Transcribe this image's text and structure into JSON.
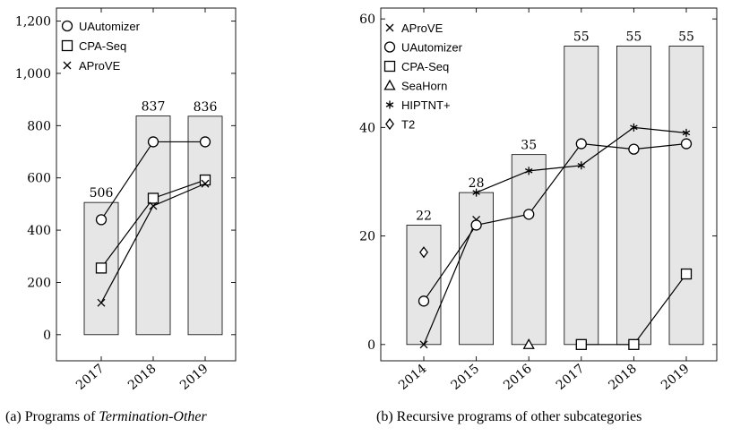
{
  "chart_data": [
    {
      "type": "bar",
      "categories": [
        "2017",
        "2018",
        "2019"
      ],
      "ylim": [
        -100,
        1250
      ],
      "yticks": [
        0,
        200,
        400,
        600,
        800,
        1000,
        1200
      ],
      "ytick_labels": [
        "0",
        "200",
        "400",
        "600",
        "800",
        "1,000",
        "1,200"
      ],
      "bars": {
        "values": [
          506,
          837,
          836
        ],
        "labels": [
          "506",
          "837",
          "836"
        ],
        "color": "#e6e6e6"
      },
      "series": [
        {
          "name": "UAutomizer",
          "marker": "circle",
          "values": [
            440,
            738,
            738
          ]
        },
        {
          "name": "CPA-Seq",
          "marker": "square",
          "values": [
            255,
            522,
            592
          ]
        },
        {
          "name": "AProVE",
          "marker": "cross",
          "values": [
            122,
            493,
            578
          ]
        }
      ],
      "legend_position": "top-left",
      "caption_prefix": "(a) Programs of ",
      "caption_emph": "Termination-Other"
    },
    {
      "type": "bar",
      "categories": [
        "2014",
        "2015",
        "2016",
        "2017",
        "2018",
        "2019"
      ],
      "ylim": [
        -3,
        62
      ],
      "yticks": [
        0,
        20,
        40,
        60
      ],
      "ytick_labels": [
        "0",
        "20",
        "40",
        "60"
      ],
      "bars": {
        "values": [
          22,
          28,
          35,
          55,
          55,
          55
        ],
        "labels": [
          "22",
          "28",
          "35",
          "55",
          "55",
          "55"
        ],
        "color": "#e6e6e6"
      },
      "series": [
        {
          "name": "AProVE",
          "marker": "cross",
          "values": [
            0,
            23,
            null,
            null,
            null,
            null
          ]
        },
        {
          "name": "UAutomizer",
          "marker": "circle",
          "values": [
            8,
            22,
            24,
            37,
            36,
            37
          ]
        },
        {
          "name": "CPA-Seq",
          "marker": "square",
          "values": [
            null,
            null,
            null,
            0,
            0,
            13
          ]
        },
        {
          "name": "SeaHorn",
          "marker": "triangle",
          "values": [
            null,
            null,
            0,
            null,
            null,
            null
          ]
        },
        {
          "name": "HIPTNT+",
          "marker": "star",
          "values": [
            null,
            28,
            32,
            33,
            40,
            39
          ]
        },
        {
          "name": "T2",
          "marker": "diamond",
          "values": [
            17,
            null,
            null,
            null,
            null,
            null
          ]
        }
      ],
      "legend_position": "top-left",
      "caption": "(b) Recursive programs of other subcategories"
    }
  ]
}
